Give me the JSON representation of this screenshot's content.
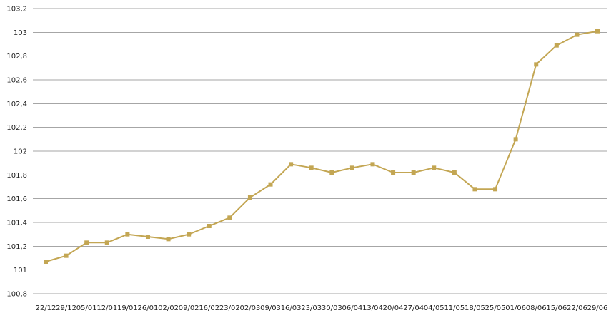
{
  "chart_data": {
    "type": "line",
    "title": "",
    "xlabel": "",
    "ylabel": "",
    "ylim": [
      100.8,
      103.2
    ],
    "yticks": [
      100.8,
      101,
      101.2,
      101.4,
      101.6,
      101.8,
      102,
      102.2,
      102.4,
      102.6,
      102.8,
      103,
      103.2
    ],
    "ytick_labels": [
      "100,8",
      "101",
      "101,2",
      "101,4",
      "101,6",
      "101,8",
      "102",
      "102,2",
      "102,4",
      "102,6",
      "102,8",
      "103",
      "103,2"
    ],
    "grid": true,
    "legend": "none",
    "series_color": "#c3a653",
    "grid_color": "#a6a6a6",
    "categories": [
      "22/12",
      "29/12",
      "05/01",
      "12/01",
      "19/01",
      "26/01",
      "02/02",
      "09/02",
      "16/02",
      "23/02",
      "02/03",
      "09/03",
      "16/03",
      "23/03",
      "30/03",
      "06/04",
      "13/04",
      "20/04",
      "27/04",
      "04/05",
      "11/05",
      "18/05",
      "25/05",
      "01/06",
      "08/06",
      "15/06",
      "22/06",
      "29/06"
    ],
    "series": [
      {
        "values": [
          101.07,
          101.12,
          101.23,
          101.23,
          101.3,
          101.28,
          101.26,
          101.3,
          101.37,
          101.44,
          101.61,
          101.72,
          101.89,
          101.86,
          101.82,
          101.86,
          101.89,
          101.82,
          101.82,
          101.86,
          101.82,
          101.68,
          101.68,
          102.1,
          102.73,
          102.89,
          102.98,
          103.01
        ]
      }
    ]
  }
}
